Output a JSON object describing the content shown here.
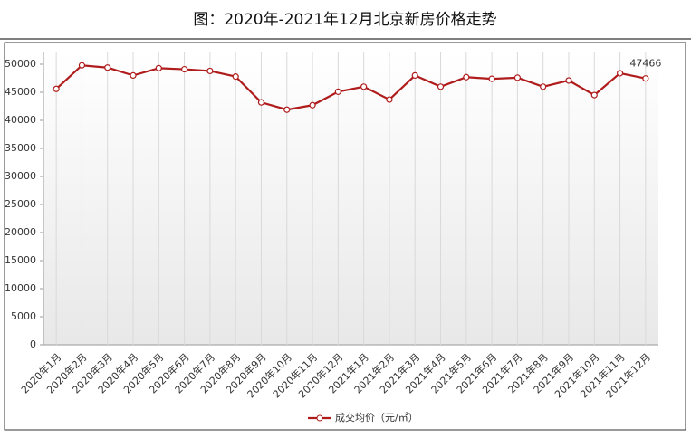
{
  "chart_data": {
    "type": "line",
    "title": "图：2020年-2021年12月北京新房价格走势",
    "categories": [
      "2020年1月",
      "2020年2月",
      "2020年3月",
      "2020年4月",
      "2020年5月",
      "2020年6月",
      "2020年7月",
      "2020年8月",
      "2020年9月",
      "2020年10月",
      "2020年11月",
      "2020年12月",
      "2021年1月",
      "2021年2月",
      "2021年3月",
      "2021年4月",
      "2021年5月",
      "2021年6月",
      "2021年7月",
      "2021年8月",
      "2021年9月",
      "2021年10月",
      "2021年11月",
      "2021年12月"
    ],
    "series": [
      {
        "name": "成交均价（元/㎡）",
        "color": "#b01c1c",
        "values": [
          45600,
          49800,
          49400,
          48000,
          49300,
          49100,
          48800,
          47800,
          43200,
          41900,
          42700,
          45100,
          46000,
          43700,
          48000,
          46000,
          47700,
          47400,
          47600,
          46000,
          47100,
          44500,
          48400,
          47466
        ]
      }
    ],
    "ylim": [
      0,
      50000
    ],
    "yticks": [
      0,
      5000,
      10000,
      15000,
      20000,
      25000,
      30000,
      35000,
      40000,
      45000,
      50000
    ],
    "grid": true,
    "legend": "bottom"
  }
}
